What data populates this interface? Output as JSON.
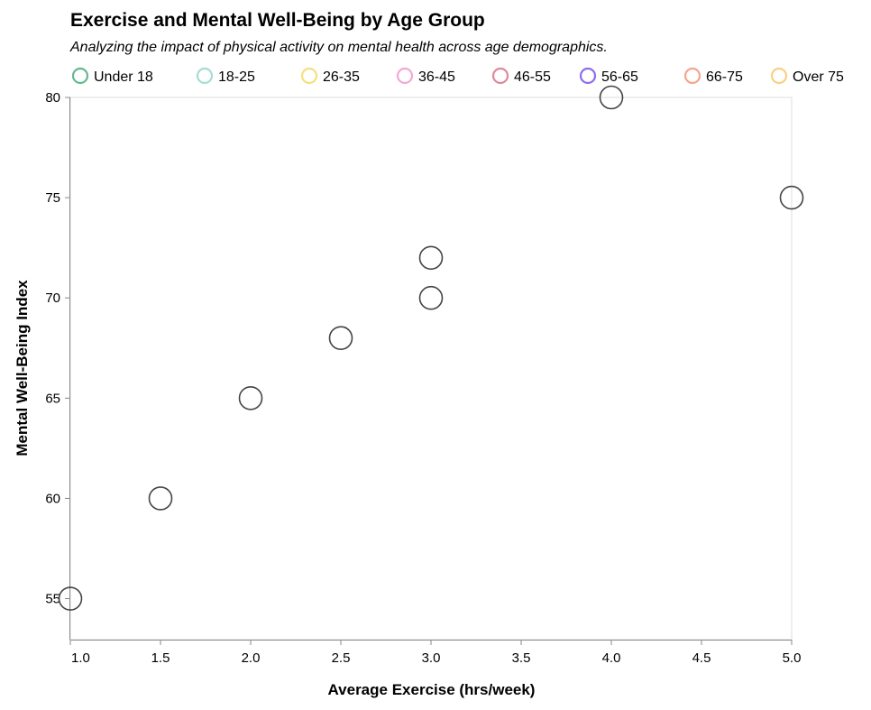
{
  "chart_data": {
    "type": "scatter",
    "title": "Exercise and Mental Well-Being by Age Group",
    "subtitle": "Analyzing the impact of physical activity on mental health across age demographics.",
    "xlabel": "Average Exercise (hrs/week)",
    "ylabel": "Mental Well-Being Index",
    "xlim": [
      1.0,
      5.0
    ],
    "ylim": [
      53,
      80
    ],
    "x_ticks": [
      1.0,
      1.5,
      2.0,
      2.5,
      3.0,
      3.5,
      4.0,
      4.5,
      5.0
    ],
    "x_tick_labels": [
      "1.0",
      "1.5",
      "2.0",
      "2.5",
      "3.0",
      "3.5",
      "4.0",
      "4.5",
      "5.0"
    ],
    "y_ticks": [
      55,
      60,
      65,
      70,
      75,
      80
    ],
    "y_tick_labels": [
      "55",
      "60",
      "65",
      "70",
      "75",
      "80"
    ],
    "grid": false,
    "legend_position": "top",
    "legend": [
      {
        "label": "Under 18",
        "color": "#66b88f"
      },
      {
        "label": "18-25",
        "color": "#a6dcd2"
      },
      {
        "label": "26-35",
        "color": "#f5e07a"
      },
      {
        "label": "36-45",
        "color": "#f3a8d4"
      },
      {
        "label": "46-55",
        "color": "#e0879a"
      },
      {
        "label": "56-65",
        "color": "#8f6bf2"
      },
      {
        "label": "66-75",
        "color": "#f8a290"
      },
      {
        "label": "Over 75",
        "color": "#f9d084"
      }
    ],
    "marker_stroke": "#444444",
    "points": [
      {
        "x": 1.0,
        "y": 55
      },
      {
        "x": 1.5,
        "y": 60
      },
      {
        "x": 2.0,
        "y": 65
      },
      {
        "x": 2.5,
        "y": 68
      },
      {
        "x": 3.0,
        "y": 70
      },
      {
        "x": 3.0,
        "y": 72
      },
      {
        "x": 4.0,
        "y": 80
      },
      {
        "x": 5.0,
        "y": 75
      }
    ]
  }
}
